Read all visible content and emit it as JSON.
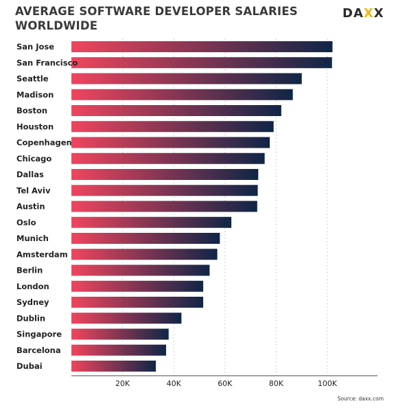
{
  "header": {
    "title_line1": "AVERAGE SOFTWARE DEVELOPER SALARIES",
    "title_line2": "WORLDWIDE"
  },
  "logo": {
    "text_left": "DA",
    "text_accent": "X",
    "text_right": "X",
    "accent_color": "#f2b705"
  },
  "source": "Source: daxx.com",
  "colors": {
    "gradient_start": "#f0455e",
    "gradient_end": "#0f2547",
    "grid": "#cfcfcf",
    "axis": "#444444",
    "text": "#222222"
  },
  "chart_data": {
    "type": "bar",
    "orientation": "horizontal",
    "title": "AVERAGE SOFTWARE DEVELOPER SALARIES WORLDWIDE",
    "xlabel": "",
    "ylabel": "",
    "xlim": [
      0,
      120000
    ],
    "xticks": [
      20000,
      40000,
      60000,
      80000,
      100000
    ],
    "xtick_labels": [
      "20K",
      "40K",
      "60K",
      "80K",
      "100K"
    ],
    "grid": "vertical dotted",
    "categories": [
      "San Jose",
      "San Francisco",
      "Seattle",
      "Madison",
      "Boston",
      "Houston",
      "Copenhagen",
      "Chicago",
      "Dallas",
      "Tel Aviv",
      "Austin",
      "Oslo",
      "Munich",
      "Amsterdam",
      "Berlin",
      "London",
      "Sydney",
      "Dublin",
      "Singapore",
      "Barcelona",
      "Dubai"
    ],
    "values": [
      102000,
      101800,
      90000,
      86500,
      82000,
      79000,
      77500,
      75500,
      73000,
      72800,
      72600,
      62500,
      58000,
      57000,
      54000,
      51500,
      51500,
      43000,
      38000,
      37000,
      33000
    ]
  }
}
